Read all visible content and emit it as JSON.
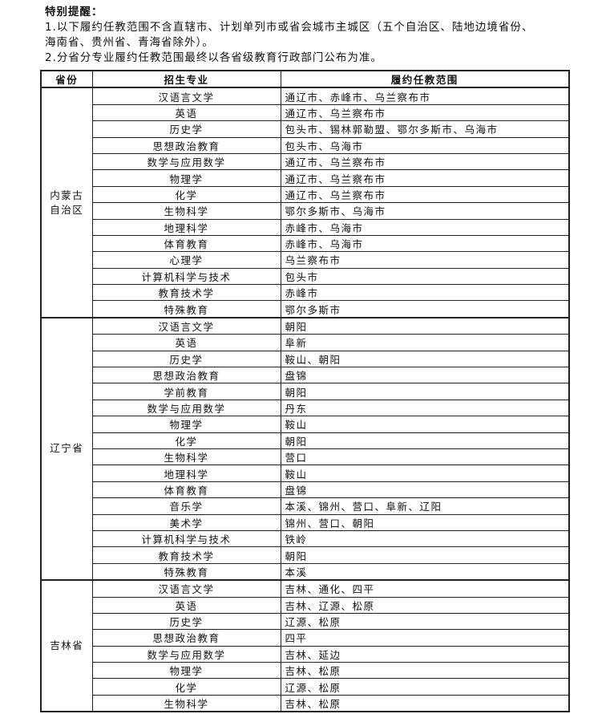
{
  "notes": {
    "title": "特别提醒：",
    "line1": "1.以下履约任教范围不含直辖市、计划单列市或省会城市主城区（五个自治区、陆地边境省份、",
    "line1b": "海南省、贵州省、青海省除外）。",
    "line2": "2.分省分专业履约任教范围最终以各省级教育行政部门公布为准。"
  },
  "table": {
    "headers": [
      "省份",
      "招生专业",
      "履约任教范围"
    ],
    "groups": [
      {
        "province": "内蒙古自治区",
        "rows": [
          [
            "汉语言文学",
            "通辽市、赤峰市、乌兰察布市"
          ],
          [
            "英语",
            "通辽市、乌兰察布市"
          ],
          [
            "历史学",
            "包头市、锡林郭勒盟、鄂尔多斯市、乌海市"
          ],
          [
            "思想政治教育",
            "包头市、乌海市"
          ],
          [
            "数学与应用数学",
            "通辽市、乌兰察布市"
          ],
          [
            "物理学",
            "通辽市、乌兰察布市"
          ],
          [
            "化学",
            "通辽市、乌兰察布市"
          ],
          [
            "生物科学",
            "鄂尔多斯市、乌海市"
          ],
          [
            "地理科学",
            "赤峰市、乌海市"
          ],
          [
            "体育教育",
            "赤峰市、乌海市"
          ],
          [
            "心理学",
            "乌兰察布市"
          ],
          [
            "计算机科学与技术",
            "包头市"
          ],
          [
            "教育技术学",
            "赤峰市"
          ],
          [
            "特殊教育",
            "鄂尔多斯市"
          ]
        ]
      },
      {
        "province": "辽宁省",
        "rows": [
          [
            "汉语言文学",
            "朝阳"
          ],
          [
            "英语",
            "阜新"
          ],
          [
            "历史学",
            "鞍山、朝阳"
          ],
          [
            "思想政治教育",
            "盘锦"
          ],
          [
            "学前教育",
            "朝阳"
          ],
          [
            "数学与应用数学",
            "丹东"
          ],
          [
            "物理学",
            "鞍山"
          ],
          [
            "化学",
            "朝阳"
          ],
          [
            "生物科学",
            "营口"
          ],
          [
            "地理科学",
            "鞍山"
          ],
          [
            "体育教育",
            "盘锦"
          ],
          [
            "音乐学",
            "本溪、锦州、营口、阜新、辽阳"
          ],
          [
            "美术学",
            "锦州、营口、朝阳"
          ],
          [
            "计算机科学与技术",
            "铁岭"
          ],
          [
            "教育技术学",
            "朝阳"
          ],
          [
            "特殊教育",
            "本溪"
          ]
        ]
      },
      {
        "province": "吉林省",
        "rows": [
          [
            "汉语言文学",
            "吉林、通化、四平"
          ],
          [
            "英语",
            "吉林、辽源、松原"
          ],
          [
            "历史学",
            "辽源、松原"
          ],
          [
            "思想政治教育",
            "四平"
          ],
          [
            "数学与应用数学",
            "吉林、延边"
          ],
          [
            "物理学",
            "吉林、松原"
          ],
          [
            "化学",
            "辽源、松原"
          ],
          [
            "生物科学",
            "吉林、松原"
          ]
        ]
      }
    ]
  }
}
